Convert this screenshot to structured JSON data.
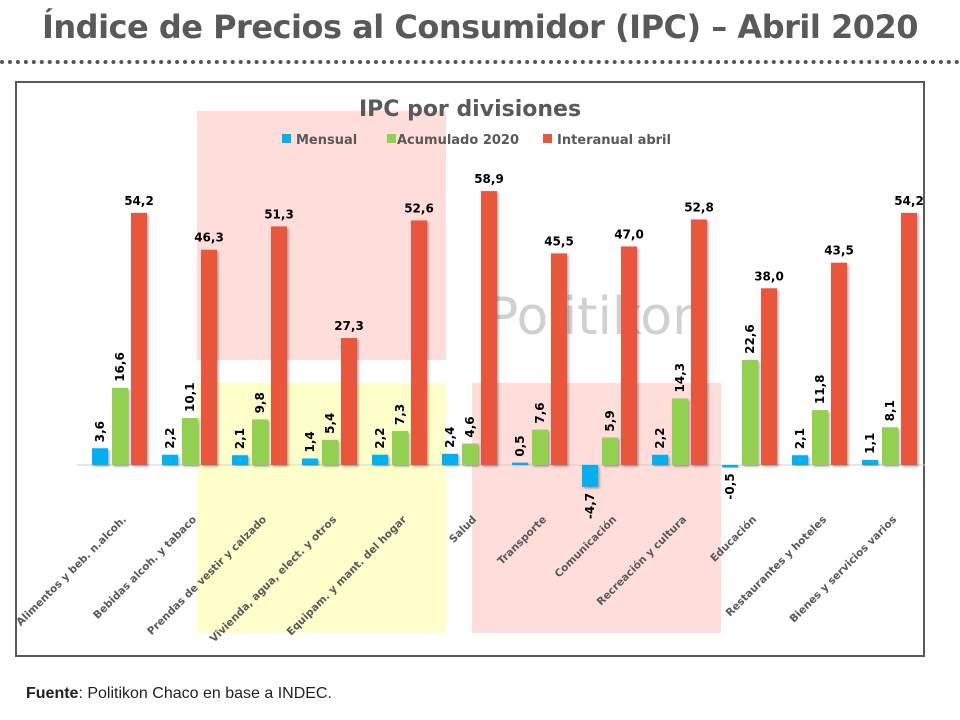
{
  "page": {
    "title": "Índice de Precios al Consumidor (IPC) – Abril 2020",
    "source_label": "Fuente",
    "source_text": ": Politikon Chaco en base a INDEC.",
    "watermark": "Politikon"
  },
  "colors": {
    "mensual": "#00B0F0",
    "acumulado": "#92D050",
    "interanual": "#E9573B",
    "highlight_red": "#FFDDDA",
    "highlight_yellow": "#FFFFCC"
  },
  "chart_data": {
    "type": "bar",
    "title": "IPC por divisiones",
    "xlabel": "",
    "ylabel": "",
    "legend_position": "top",
    "grid": false,
    "ylim": [
      -5,
      60
    ],
    "categories": [
      "Alimentos y beb. n.alcoh.",
      "Bebidas alcoh. y tabaco",
      "Prendas de vestir y calzado",
      "Vivienda, agua, elect. y otros",
      "Equipam. y mant. del hogar",
      "Salud",
      "Transporte",
      "Comunicación",
      "Recreación y cultura",
      "Educación",
      "Restaurantes y hoteles",
      "Bienes y servicios varios"
    ],
    "series": [
      {
        "name": "Mensual",
        "values": [
          3.6,
          2.2,
          2.1,
          1.4,
          2.2,
          2.4,
          0.5,
          -4.7,
          2.2,
          -0.5,
          2.1,
          1.1
        ],
        "labels": [
          "3,6",
          "2,2",
          "2,1",
          "1,4",
          "2,2",
          "2,4",
          "0,5",
          "-4,7",
          "2,2",
          "-0,5",
          "2,1",
          "1,1"
        ]
      },
      {
        "name": "Acumulado 2020",
        "values": [
          16.6,
          10.1,
          9.8,
          5.4,
          7.3,
          4.6,
          7.6,
          5.9,
          14.3,
          22.6,
          11.8,
          8.1
        ],
        "labels": [
          "16,6",
          "10,1",
          "9,8",
          "5,4",
          "7,3",
          "4,6",
          "7,6",
          "5,9",
          "14,3",
          "22,6",
          "11,8",
          "8,1"
        ]
      },
      {
        "name": "Interanual abril",
        "values": [
          54.2,
          46.3,
          51.3,
          27.3,
          52.6,
          58.9,
          45.5,
          47.0,
          52.8,
          38.0,
          43.5,
          54.2
        ],
        "labels": [
          "54,2",
          "46,3",
          "51,3",
          "27,3",
          "52,6",
          "58,9",
          "45,5",
          "47,0",
          "52,8",
          "38,0",
          "43,5",
          "54,2"
        ]
      }
    ]
  }
}
